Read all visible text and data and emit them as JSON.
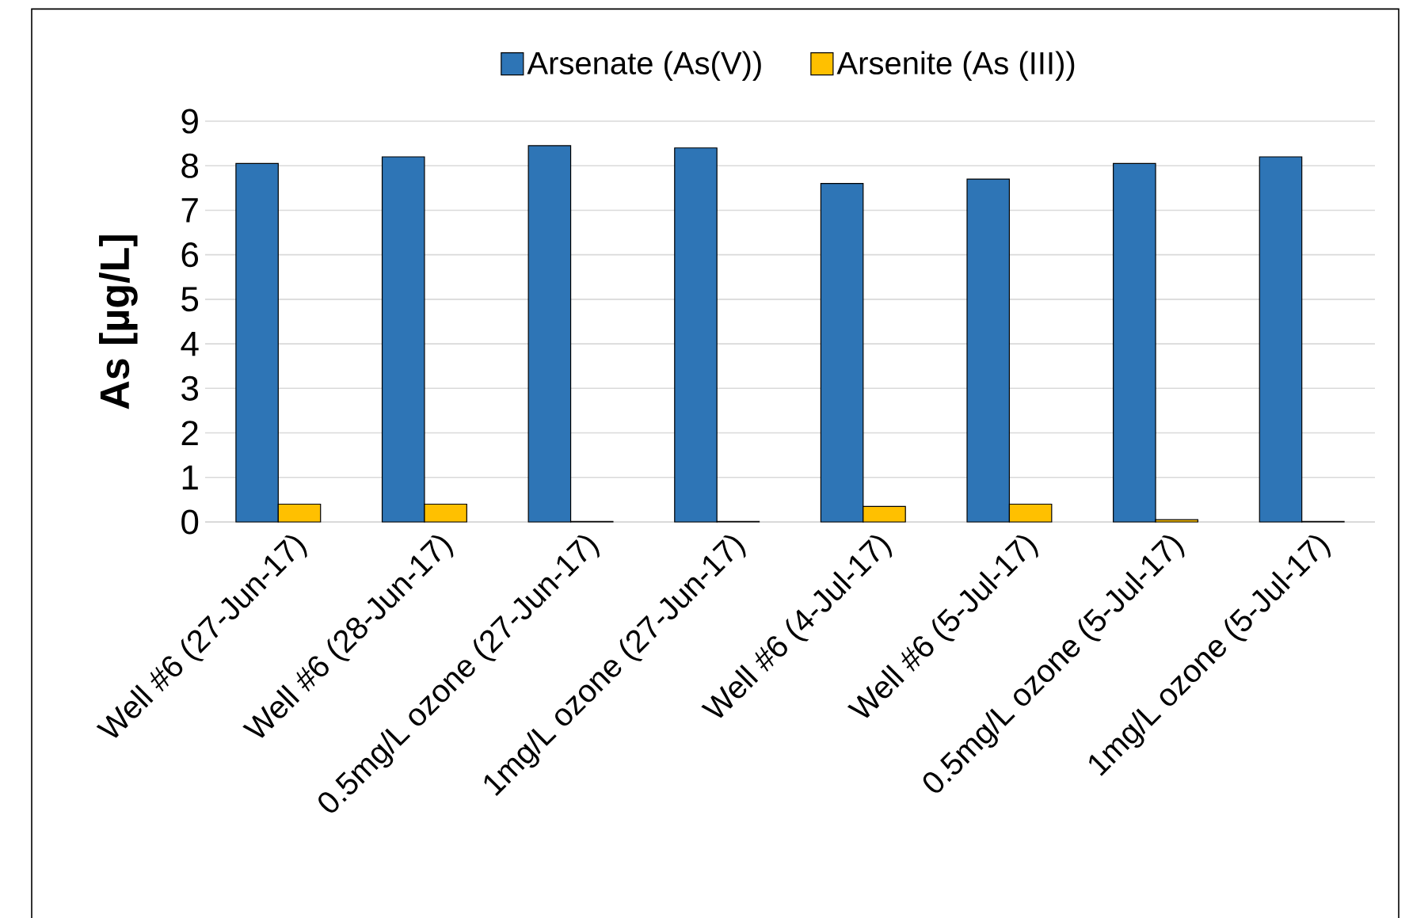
{
  "chart_data": {
    "type": "bar",
    "categories": [
      "Well #6 (27-Jun-17)",
      "Well #6 (28-Jun-17)",
      "0.5mg/L ozone (27-Jun-17)",
      "1mg/L ozone (27-Jun-17)",
      "Well #6 (4-Jul-17)",
      "Well #6 (5-Jul-17)",
      "0.5mg/L ozone (5-Jul-17)",
      "1mg/L ozone (5-Jul-17)"
    ],
    "series": [
      {
        "name": "Arsenate (As(V))",
        "color": "#2e75b6",
        "values": [
          8.05,
          8.2,
          8.45,
          8.4,
          7.6,
          7.7,
          8.05,
          8.2
        ]
      },
      {
        "name": "Arsenite (As (III))",
        "color": "#ffc000",
        "values": [
          0.4,
          0.4,
          0.01,
          0.01,
          0.35,
          0.4,
          0.05,
          0.01
        ]
      }
    ],
    "ylabel": "As [µg/L]",
    "ylim": [
      0,
      9
    ],
    "yticks": [
      0,
      1,
      2,
      3,
      4,
      5,
      6,
      7,
      8,
      9
    ],
    "grid": "y",
    "legend": "top"
  }
}
